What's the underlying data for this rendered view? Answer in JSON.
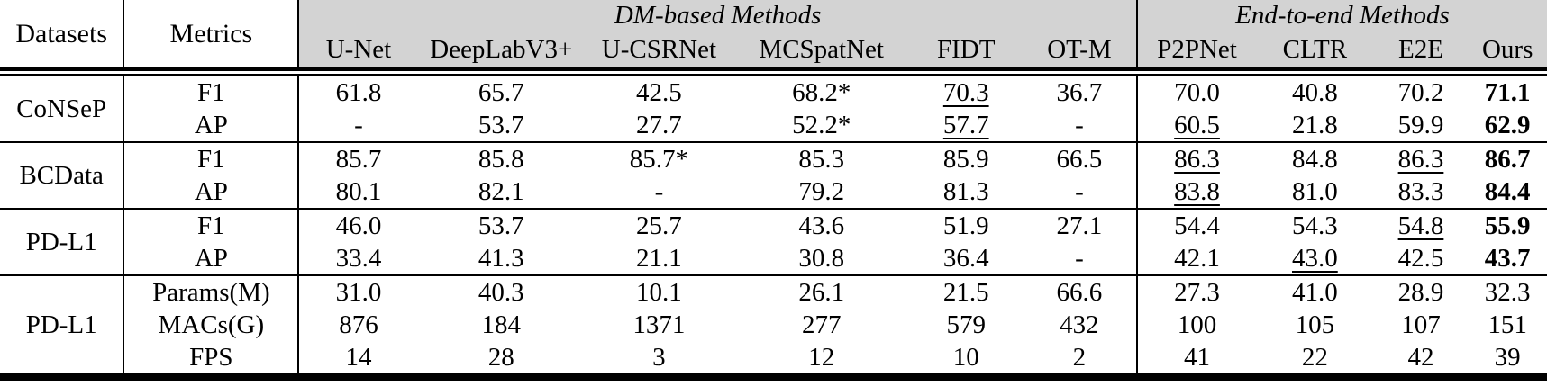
{
  "colors": {
    "header_bg": "#d3d3d3",
    "rule": "#000000",
    "header_inner_line": "#8a8a8a"
  },
  "table": {
    "corner_headers": [
      "Datasets",
      "Metrics"
    ],
    "groups": [
      {
        "label": "DM-based Methods",
        "methods": [
          "U-Net",
          "DeepLabV3+",
          "U-CSRNet",
          "MCSpatNet",
          "FIDT",
          "OT-M"
        ]
      },
      {
        "label": "End-to-end Methods",
        "methods": [
          "P2PNet",
          "CLTR",
          "E2E",
          "Ours"
        ]
      }
    ],
    "sections": [
      {
        "dataset": "CoNSeP",
        "rows": [
          {
            "metric": "F1",
            "cells": [
              {
                "v": "61.8"
              },
              {
                "v": "65.7"
              },
              {
                "v": "42.5"
              },
              {
                "v": "68.2*"
              },
              {
                "v": "70.3",
                "style": "underline"
              },
              {
                "v": "36.7"
              },
              {
                "v": "70.0"
              },
              {
                "v": "40.8"
              },
              {
                "v": "70.2"
              },
              {
                "v": "71.1",
                "style": "bold"
              }
            ]
          },
          {
            "metric": "AP",
            "cells": [
              {
                "v": "-"
              },
              {
                "v": "53.7"
              },
              {
                "v": "27.7"
              },
              {
                "v": "52.2*"
              },
              {
                "v": "57.7",
                "style": "underline"
              },
              {
                "v": "-"
              },
              {
                "v": "60.5",
                "style": "underline"
              },
              {
                "v": "21.8"
              },
              {
                "v": "59.9"
              },
              {
                "v": "62.9",
                "style": "bold"
              }
            ]
          }
        ]
      },
      {
        "dataset": "BCData",
        "rows": [
          {
            "metric": "F1",
            "cells": [
              {
                "v": "85.7"
              },
              {
                "v": "85.8"
              },
              {
                "v": "85.7*"
              },
              {
                "v": "85.3"
              },
              {
                "v": "85.9"
              },
              {
                "v": "66.5"
              },
              {
                "v": "86.3",
                "style": "underline"
              },
              {
                "v": "84.8"
              },
              {
                "v": "86.3",
                "style": "underline"
              },
              {
                "v": "86.7",
                "style": "bold"
              }
            ]
          },
          {
            "metric": "AP",
            "cells": [
              {
                "v": "80.1"
              },
              {
                "v": "82.1"
              },
              {
                "v": "-"
              },
              {
                "v": "79.2"
              },
              {
                "v": "81.3"
              },
              {
                "v": "-"
              },
              {
                "v": "83.8",
                "style": "underline"
              },
              {
                "v": "81.0"
              },
              {
                "v": "83.3"
              },
              {
                "v": "84.4",
                "style": "bold"
              }
            ]
          }
        ]
      },
      {
        "dataset": "PD-L1",
        "rows": [
          {
            "metric": "F1",
            "cells": [
              {
                "v": "46.0"
              },
              {
                "v": "53.7"
              },
              {
                "v": "25.7"
              },
              {
                "v": "43.6"
              },
              {
                "v": "51.9"
              },
              {
                "v": "27.1"
              },
              {
                "v": "54.4"
              },
              {
                "v": "54.3"
              },
              {
                "v": "54.8",
                "style": "underline"
              },
              {
                "v": "55.9",
                "style": "bold"
              }
            ]
          },
          {
            "metric": "AP",
            "cells": [
              {
                "v": "33.4"
              },
              {
                "v": "41.3"
              },
              {
                "v": "21.1"
              },
              {
                "v": "30.8"
              },
              {
                "v": "36.4"
              },
              {
                "v": "-"
              },
              {
                "v": "42.1"
              },
              {
                "v": "43.0",
                "style": "underline"
              },
              {
                "v": "42.5"
              },
              {
                "v": "43.7",
                "style": "bold"
              }
            ]
          }
        ]
      },
      {
        "dataset": "PD-L1",
        "rows": [
          {
            "metric": "Params(M)",
            "cells": [
              {
                "v": "31.0"
              },
              {
                "v": "40.3"
              },
              {
                "v": "10.1"
              },
              {
                "v": "26.1"
              },
              {
                "v": "21.5"
              },
              {
                "v": "66.6"
              },
              {
                "v": "27.3"
              },
              {
                "v": "41.0"
              },
              {
                "v": "28.9"
              },
              {
                "v": "32.3"
              }
            ]
          },
          {
            "metric": "MACs(G)",
            "cells": [
              {
                "v": "876"
              },
              {
                "v": "184"
              },
              {
                "v": "1371"
              },
              {
                "v": "277"
              },
              {
                "v": "579"
              },
              {
                "v": "432"
              },
              {
                "v": "100"
              },
              {
                "v": "105"
              },
              {
                "v": "107"
              },
              {
                "v": "151"
              }
            ]
          },
          {
            "metric": "FPS",
            "cells": [
              {
                "v": "14"
              },
              {
                "v": "28"
              },
              {
                "v": "3"
              },
              {
                "v": "12"
              },
              {
                "v": "10"
              },
              {
                "v": "2"
              },
              {
                "v": "41"
              },
              {
                "v": "22"
              },
              {
                "v": "42"
              },
              {
                "v": "39"
              }
            ]
          }
        ]
      }
    ]
  }
}
